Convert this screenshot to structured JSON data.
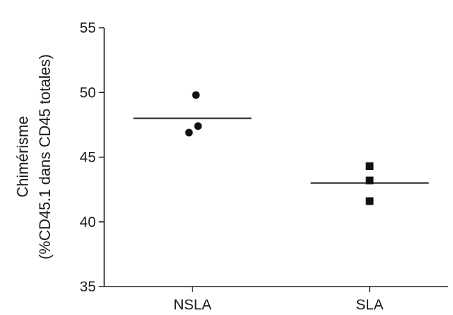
{
  "chart_data": {
    "type": "scatter",
    "title": "",
    "xlabel": "",
    "ylabel_line1": "Chimérisme",
    "ylabel_line2": "(%CD45.1 dans CD45 totales)",
    "ylim": [
      35,
      55
    ],
    "yticks": [
      35,
      40,
      45,
      50,
      55
    ],
    "categories": [
      "NSLA",
      "SLA"
    ],
    "grid": false,
    "legend": "none",
    "series": [
      {
        "category": "NSLA",
        "marker": "circle",
        "points": [
          {
            "jitter": 0.05,
            "y": 49.8
          },
          {
            "jitter": 0.08,
            "y": 47.4
          },
          {
            "jitter": -0.05,
            "y": 46.9
          }
        ],
        "mean": 48.0
      },
      {
        "category": "SLA",
        "marker": "square",
        "points": [
          {
            "jitter": 0.0,
            "y": 44.3
          },
          {
            "jitter": 0.0,
            "y": 43.2
          },
          {
            "jitter": 0.0,
            "y": 41.6
          }
        ],
        "mean": 43.0
      }
    ],
    "colors": {
      "axis": "#222222",
      "marker": "#111111",
      "text": "#1a1a1a"
    }
  }
}
